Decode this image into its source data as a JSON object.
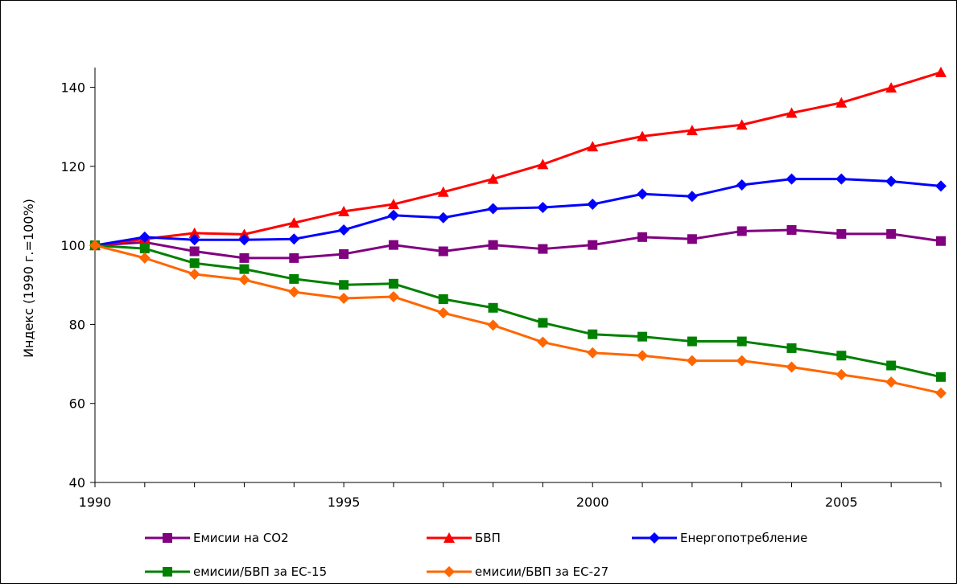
{
  "chart_data": {
    "type": "line",
    "title": "",
    "xlabel": "",
    "ylabel": "Индекс (1990 г.=100%)",
    "x": [
      1990,
      1991,
      1992,
      1993,
      1994,
      1995,
      1996,
      1997,
      1998,
      1999,
      2000,
      2001,
      2002,
      2003,
      2004,
      2005,
      2006,
      2007
    ],
    "xlim": [
      1990,
      2007
    ],
    "ylim": [
      40,
      145
    ],
    "x_ticks": [
      1990,
      1995,
      2000,
      2005
    ],
    "y_ticks": [
      40,
      60,
      80,
      100,
      120,
      140
    ],
    "x_tick_labels": [
      "1990",
      "1995",
      "2000",
      "2005"
    ],
    "y_tick_labels": [
      "40",
      "60",
      "80",
      "100",
      "120",
      "140"
    ],
    "grid": false,
    "legend_position": "bottom",
    "series": [
      {
        "name": "Емисии на CO2",
        "color": "#800080",
        "marker": "square",
        "values": [
          100,
          100.8,
          98.5,
          96.8,
          96.8,
          97.8,
          100.1,
          98.5,
          100.1,
          99.1,
          100.1,
          102.1,
          101.6,
          103.6,
          103.9,
          102.9,
          102.9,
          101.1
        ]
      },
      {
        "name": "БВП",
        "color": "#ff0000",
        "marker": "triangle",
        "values": [
          100,
          101.6,
          103.1,
          102.8,
          105.7,
          108.6,
          110.4,
          113.5,
          116.8,
          120.5,
          125.0,
          127.6,
          129.1,
          130.5,
          133.5,
          136.1,
          139.9,
          143.8
        ]
      },
      {
        "name": "Енергопотребление",
        "color": "#0000ff",
        "marker": "diamond",
        "values": [
          100,
          102.1,
          101.4,
          101.4,
          101.6,
          103.9,
          107.6,
          107.0,
          109.3,
          109.6,
          110.4,
          113.0,
          112.4,
          115.3,
          116.8,
          116.8,
          116.2,
          115.0
        ]
      },
      {
        "name": "емисии/БВП за ЕС-15",
        "color": "#008000",
        "marker": "square",
        "values": [
          100,
          99.2,
          95.5,
          94.0,
          91.5,
          90.0,
          90.3,
          86.4,
          84.2,
          80.4,
          77.5,
          76.9,
          75.7,
          75.7,
          74.0,
          72.1,
          69.6,
          66.7
        ]
      },
      {
        "name": "емисии/БВП за ЕС-27",
        "color": "#ff6600",
        "marker": "diamond",
        "values": [
          100,
          96.8,
          92.7,
          91.3,
          88.2,
          86.6,
          87.0,
          82.9,
          79.8,
          75.5,
          72.8,
          72.1,
          70.8,
          70.8,
          69.2,
          67.3,
          65.4,
          62.6
        ]
      }
    ]
  }
}
